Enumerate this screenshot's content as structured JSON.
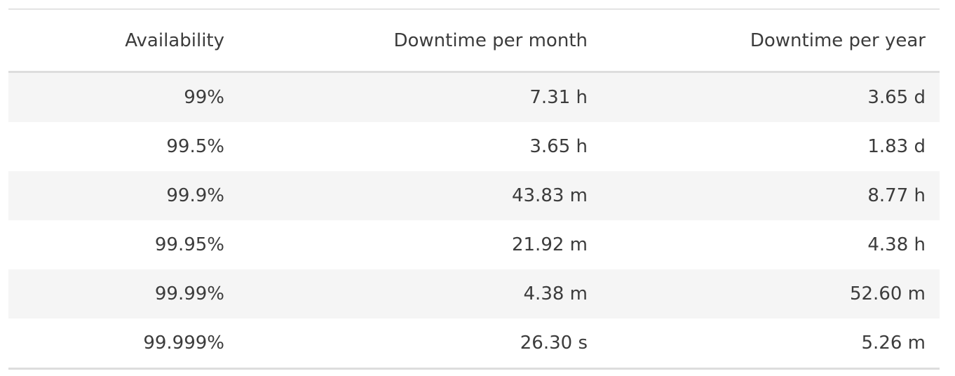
{
  "table": {
    "headers": [
      "Availability",
      "Downtime per month",
      "Downtime per year"
    ],
    "rows": [
      [
        "99%",
        "7.31 h",
        "3.65 d"
      ],
      [
        "99.5%",
        "3.65 h",
        "1.83 d"
      ],
      [
        "99.9%",
        "43.83 m",
        "8.77 h"
      ],
      [
        "99.95%",
        "21.92 m",
        "4.38 h"
      ],
      [
        "99.99%",
        "4.38 m",
        "52.60 m"
      ],
      [
        "99.999%",
        "26.30 s",
        "5.26 m"
      ]
    ]
  }
}
